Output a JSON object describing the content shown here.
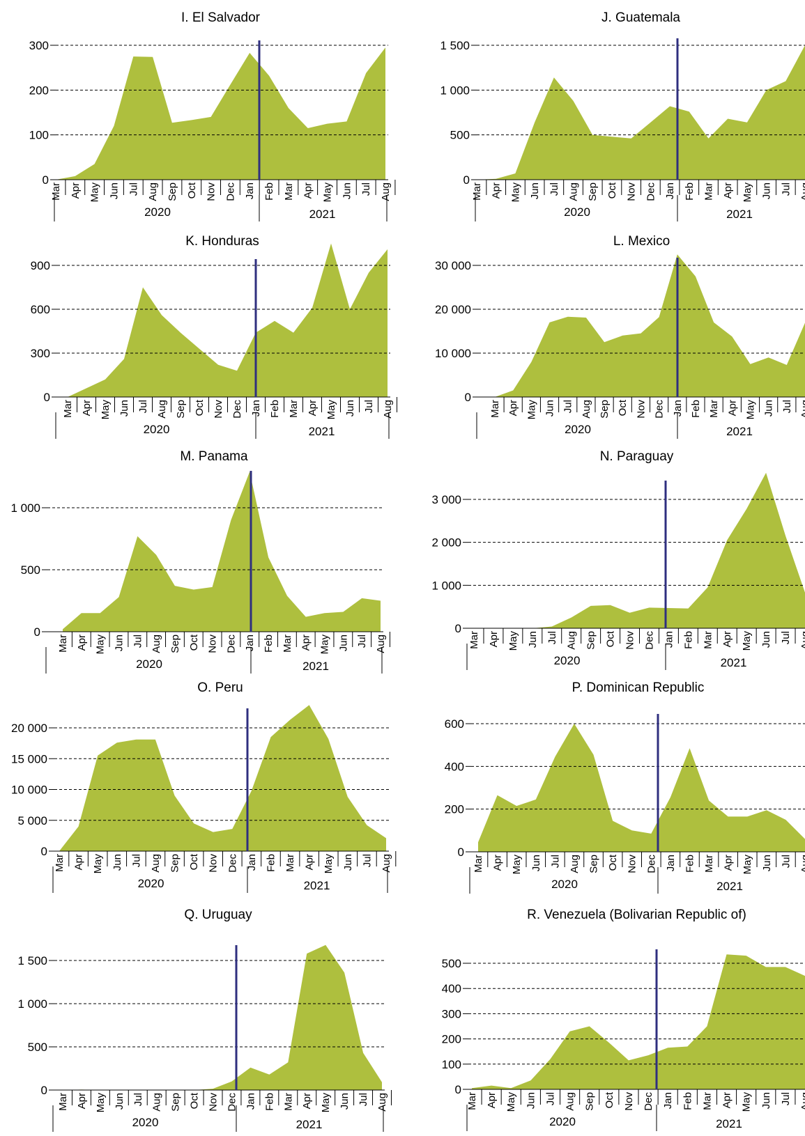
{
  "style": {
    "area_color": "#aebf3e",
    "divider_color": "#2f2f7f",
    "grid_color": "#000000"
  },
  "chart_data": [
    {
      "type": "area",
      "title": "I. El Salvador",
      "months": [
        "Mar",
        "Apr",
        "May",
        "Jun",
        "Jul",
        "Aug",
        "Sep",
        "Oct",
        "Nov",
        "Dec",
        "Jan",
        "Feb",
        "Mar",
        "Apr",
        "May",
        "Jun",
        "Jul",
        "Aug"
      ],
      "years": [
        "2020",
        "2021"
      ],
      "values": [
        0,
        8,
        35,
        120,
        275,
        274,
        127,
        133,
        140,
        212,
        283,
        232,
        160,
        115,
        125,
        130,
        238,
        295
      ],
      "yticks": [
        0,
        100,
        200,
        300
      ],
      "ytick_labels": [
        "0",
        "100",
        "200",
        "300"
      ],
      "ylim": [
        0,
        300
      ]
    },
    {
      "type": "area",
      "title": "J. Guatemala",
      "months": [
        "Mar",
        "Apr",
        "May",
        "Jun",
        "Jul",
        "Aug",
        "Sep",
        "Oct",
        "Nov",
        "Dec",
        "Jan",
        "Feb",
        "Mar",
        "Apr",
        "May",
        "Jun",
        "Jul",
        "Aug"
      ],
      "years": [
        "2020",
        "2021"
      ],
      "values": [
        0,
        10,
        70,
        640,
        1140,
        880,
        500,
        480,
        460,
        640,
        820,
        760,
        460,
        680,
        640,
        1000,
        1100,
        1500
      ],
      "yticks": [
        0,
        500,
        1000,
        1500
      ],
      "ytick_labels": [
        "0",
        "500",
        "1 000",
        "1 500"
      ],
      "ylim": [
        0,
        1500
      ]
    },
    {
      "type": "area",
      "title": "K. Honduras",
      "months": [
        "Mar",
        "Apr",
        "May",
        "Jun",
        "Jul",
        "Aug",
        "Sep",
        "Oct",
        "Nov",
        "Dec",
        "Jan",
        "Feb",
        "Mar",
        "Apr",
        "May",
        "Jun",
        "Jul",
        "Aug"
      ],
      "years": [
        "2020",
        "2021"
      ],
      "values": [
        0,
        60,
        120,
        260,
        750,
        560,
        440,
        330,
        220,
        180,
        440,
        520,
        440,
        610,
        1050,
        600,
        850,
        1010
      ],
      "yticks": [
        0,
        300,
        600,
        900
      ],
      "ytick_labels": [
        "0",
        "300",
        "600",
        "900"
      ],
      "ylim": [
        0,
        900
      ]
    },
    {
      "type": "area",
      "title": "L. Mexico",
      "months": [
        "Mar",
        "Apr",
        "May",
        "Jun",
        "Jul",
        "Aug",
        "Sep",
        "Oct",
        "Nov",
        "Dec",
        "Jan",
        "Feb",
        "Mar",
        "Apr",
        "May",
        "Jun",
        "Jul",
        "Aug"
      ],
      "years": [
        "2020",
        "2021"
      ],
      "values": [
        0,
        1500,
        8000,
        17000,
        18300,
        18100,
        12500,
        14000,
        14500,
        18200,
        32500,
        27500,
        17000,
        13800,
        7500,
        9000,
        7300,
        16900
      ],
      "yticks": [
        0,
        10000,
        20000,
        30000
      ],
      "ytick_labels": [
        "0",
        "10 000",
        "20 000",
        "30 000"
      ],
      "ylim": [
        0,
        30000
      ]
    },
    {
      "type": "area",
      "title": "M. Panama",
      "months": [
        "Mar",
        "Apr",
        "May",
        "Jun",
        "Jul",
        "Aug",
        "Sep",
        "Oct",
        "Nov",
        "Dec",
        "Jan",
        "Feb",
        "Mar",
        "Apr",
        "May",
        "Jun",
        "Jul",
        "Aug"
      ],
      "years": [
        "2020",
        "2021"
      ],
      "values": [
        20,
        150,
        150,
        280,
        770,
        620,
        370,
        340,
        360,
        900,
        1290,
        600,
        290,
        120,
        150,
        160,
        270,
        250
      ],
      "yticks": [
        0,
        500,
        1000
      ],
      "ytick_labels": [
        "0",
        "500",
        "1 000"
      ],
      "ylim": [
        0,
        1000
      ]
    },
    {
      "type": "area",
      "title": "N. Paraguay",
      "months": [
        "Mar",
        "Apr",
        "May",
        "Jun",
        "Jul",
        "Aug",
        "Sep",
        "Oct",
        "Nov",
        "Dec",
        "Jan",
        "Feb",
        "Mar",
        "Apr",
        "May",
        "Jun",
        "Jul",
        "Aug"
      ],
      "years": [
        "2020",
        "2021"
      ],
      "values": [
        0,
        0,
        0,
        0,
        40,
        250,
        520,
        540,
        360,
        480,
        470,
        460,
        950,
        2050,
        2780,
        3620,
        2150,
        830
      ],
      "yticks": [
        0,
        1000,
        2000,
        3000
      ],
      "ytick_labels": [
        "0",
        "1 000",
        "2 000",
        "3 000"
      ],
      "ylim": [
        0,
        3000
      ]
    },
    {
      "type": "area",
      "title": "O. Peru",
      "months": [
        "Mar",
        "Apr",
        "May",
        "Jun",
        "Jul",
        "Aug",
        "Sep",
        "Oct",
        "Nov",
        "Dec",
        "Jan",
        "Feb",
        "Mar",
        "Apr",
        "May",
        "Jun",
        "Jul",
        "Aug"
      ],
      "years": [
        "2020",
        "2021"
      ],
      "values": [
        0,
        4000,
        15500,
        17600,
        18100,
        18100,
        9000,
        4500,
        3100,
        3600,
        9800,
        18500,
        21300,
        23700,
        18200,
        8800,
        4200,
        2100
      ],
      "yticks": [
        0,
        5000,
        10000,
        15000,
        20000
      ],
      "ytick_labels": [
        "0",
        "5 000",
        "10 000",
        "15 000",
        "20 000"
      ],
      "ylim": [
        0,
        20000
      ]
    },
    {
      "type": "area",
      "title": "P. Dominican Republic",
      "months": [
        "Mar",
        "Apr",
        "May",
        "Jun",
        "Jul",
        "Aug",
        "Sep",
        "Oct",
        "Nov",
        "Dec",
        "Jan",
        "Feb",
        "Mar",
        "Apr",
        "May",
        "Jun",
        "Jul",
        "Aug"
      ],
      "years": [
        "2020",
        "2021"
      ],
      "values": [
        45,
        265,
        215,
        245,
        445,
        600,
        455,
        145,
        100,
        85,
        255,
        485,
        240,
        165,
        165,
        195,
        150,
        60
      ],
      "yticks": [
        0,
        200,
        400,
        600
      ],
      "ytick_labels": [
        "0",
        "200",
        "400",
        "600"
      ],
      "ylim": [
        0,
        600
      ]
    },
    {
      "type": "area",
      "title": "Q. Uruguay",
      "months": [
        "Mar",
        "Apr",
        "May",
        "Jun",
        "Jul",
        "Aug",
        "Sep",
        "Oct",
        "Nov",
        "Dec",
        "Jan",
        "Feb",
        "Mar",
        "Apr",
        "May",
        "Jun",
        "Jul",
        "Aug"
      ],
      "years": [
        "2020",
        "2021"
      ],
      "values": [
        0,
        5,
        0,
        0,
        0,
        0,
        0,
        0,
        15,
        100,
        260,
        180,
        320,
        1580,
        1680,
        1360,
        430,
        90
      ],
      "yticks": [
        0,
        500,
        1000,
        1500
      ],
      "ytick_labels": [
        "0",
        "500",
        "1 000",
        "1 500"
      ],
      "ylim": [
        0,
        1500
      ]
    },
    {
      "type": "area",
      "title": "R. Venezuela (Bolivarian Republic of)",
      "months": [
        "Mar",
        "Apr",
        "May",
        "Jun",
        "Jul",
        "Aug",
        "Sep",
        "Oct",
        "Nov",
        "Dec",
        "Jan",
        "Feb",
        "Mar",
        "Apr",
        "May",
        "Jun",
        "Jul",
        "Aug"
      ],
      "years": [
        "2020",
        "2021"
      ],
      "values": [
        5,
        15,
        5,
        35,
        120,
        230,
        250,
        185,
        115,
        135,
        165,
        170,
        250,
        535,
        530,
        485,
        485,
        450
      ],
      "yticks": [
        0,
        100,
        200,
        300,
        400,
        500
      ],
      "ytick_labels": [
        "0",
        "100",
        "200",
        "300",
        "400",
        "500"
      ],
      "ylim": [
        0,
        500
      ]
    }
  ]
}
